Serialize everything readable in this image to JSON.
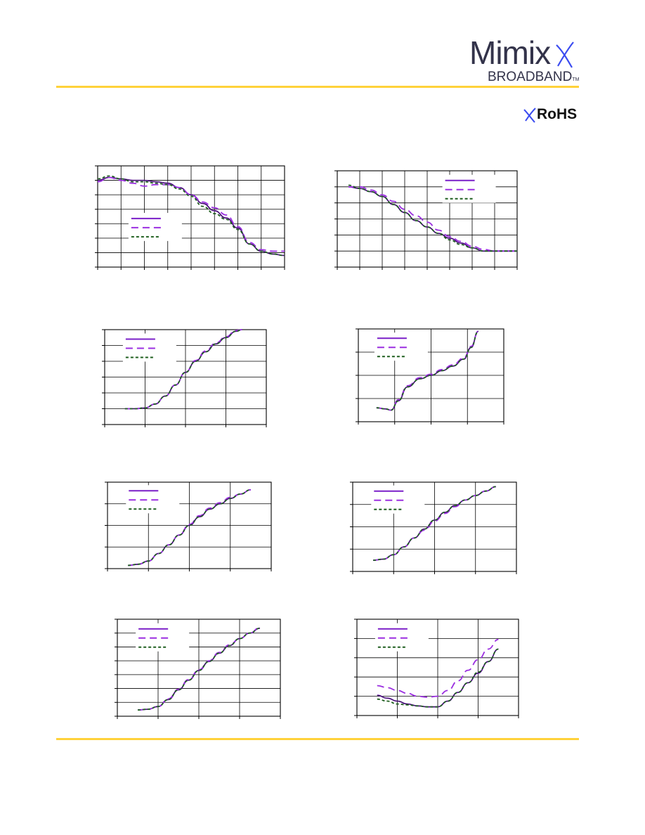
{
  "header": {
    "logo_word": "Mimix",
    "logo_sub": "BROADBAND",
    "logo_tm": "TM",
    "rohs_label": "RoHS"
  },
  "colors": {
    "rule": "#FFD23A",
    "solid_series": "#7A1FC8",
    "dash_series": "#9B2FE0",
    "dot_series": "#1F5F1F",
    "black_trace": "#111111",
    "grid": "#000000",
    "logo_accent": "#3b4cf0"
  },
  "chart_data": [
    {
      "type": "line",
      "title": "",
      "xlabel": "",
      "ylabel": "",
      "xlim": [
        0,
        8
      ],
      "ylim": [
        0,
        7
      ],
      "grid": true,
      "legend": "center-left",
      "series": [
        {
          "style": "solid",
          "x": [
            0,
            0.5,
            1,
            1.5,
            2,
            2.5,
            3,
            3.5,
            4,
            4.5,
            5,
            5.5,
            6,
            6.5,
            7,
            7.5,
            8
          ],
          "values": [
            6.0,
            6.2,
            6.1,
            6.0,
            6.0,
            5.9,
            5.8,
            5.5,
            5.0,
            4.4,
            3.9,
            3.4,
            2.7,
            1.6,
            1.1,
            0.9,
            0.8
          ]
        },
        {
          "style": "dash",
          "x": [
            0,
            0.5,
            1,
            1.5,
            2,
            2.5,
            3,
            3.5,
            4,
            4.5,
            5,
            5.5,
            6,
            6.5,
            7,
            7.5,
            8
          ],
          "values": [
            5.9,
            6.2,
            6.0,
            5.8,
            5.6,
            5.7,
            5.7,
            5.5,
            5.0,
            4.5,
            4.1,
            3.6,
            2.8,
            1.7,
            1.2,
            1.1,
            1.1
          ]
        },
        {
          "style": "dot",
          "x": [
            0,
            0.5,
            1,
            1.5,
            2,
            2.5,
            3,
            3.5,
            4,
            4.5,
            5,
            5.5,
            6,
            6.5,
            7,
            7.5,
            8
          ],
          "values": [
            6.1,
            6.3,
            6.1,
            5.9,
            5.9,
            5.8,
            5.7,
            5.4,
            4.9,
            4.2,
            3.7,
            3.3,
            2.6,
            1.6,
            1.1,
            0.9,
            0.8
          ]
        }
      ]
    },
    {
      "type": "line",
      "title": "",
      "xlabel": "",
      "ylabel": "",
      "xlim": [
        0,
        8
      ],
      "ylim": [
        0,
        6
      ],
      "grid": true,
      "legend": "top-right",
      "series": [
        {
          "style": "solid",
          "x": [
            0.5,
            1,
            1.5,
            2,
            2.5,
            3,
            3.5,
            4,
            4.5,
            5,
            5.5,
            6,
            6.5,
            7,
            7.5,
            8
          ],
          "values": [
            5.0,
            4.9,
            4.7,
            4.4,
            3.9,
            3.4,
            2.9,
            2.5,
            2.1,
            1.8,
            1.5,
            1.2,
            1.0,
            1.0,
            1.0,
            1.0
          ]
        },
        {
          "style": "dash",
          "x": [
            0.5,
            1,
            1.5,
            2,
            2.5,
            3,
            3.5,
            4,
            4.5,
            5,
            5.5,
            6,
            6.5,
            7,
            7.5,
            8
          ],
          "values": [
            5.0,
            5.0,
            4.8,
            4.5,
            4.1,
            3.6,
            3.2,
            2.8,
            2.3,
            1.9,
            1.6,
            1.3,
            1.1,
            1.0,
            1.0,
            1.0
          ]
        },
        {
          "style": "dot",
          "x": [
            0.5,
            1,
            1.5,
            2,
            2.5,
            3,
            3.5,
            4,
            4.5,
            5,
            5.5,
            6,
            6.5,
            7,
            7.5,
            8
          ],
          "values": [
            5.1,
            4.9,
            4.7,
            4.4,
            3.9,
            3.4,
            2.9,
            2.5,
            2.1,
            1.7,
            1.4,
            1.2,
            1.0,
            1.0,
            1.0,
            1.0
          ]
        }
      ]
    },
    {
      "type": "line",
      "title": "",
      "xlabel": "",
      "ylabel": "",
      "xlim": [
        0,
        4
      ],
      "ylim": [
        0,
        6
      ],
      "grid": true,
      "legend": "top-left",
      "series": [
        {
          "style": "solid",
          "x": [
            0.5,
            0.75,
            1,
            1.25,
            1.5,
            1.75,
            2,
            2.25,
            2.5,
            2.75,
            3,
            3.25,
            3.4
          ],
          "values": [
            1.0,
            1.0,
            1.05,
            1.3,
            1.8,
            2.5,
            3.3,
            4.0,
            4.6,
            5.1,
            5.5,
            5.9,
            6.0
          ]
        },
        {
          "style": "dash",
          "x": [
            0.5,
            0.75,
            1,
            1.25,
            1.5,
            1.75,
            2,
            2.25,
            2.5,
            2.75,
            3,
            3.25,
            3.4
          ],
          "values": [
            1.0,
            1.0,
            1.05,
            1.3,
            1.8,
            2.5,
            3.3,
            4.05,
            4.65,
            5.15,
            5.55,
            5.95,
            6.0
          ]
        },
        {
          "style": "dot",
          "x": [
            0.5,
            0.75,
            1,
            1.25,
            1.5,
            1.75,
            2,
            2.25,
            2.5,
            2.75,
            3,
            3.25,
            3.4
          ],
          "values": [
            1.0,
            1.0,
            1.05,
            1.3,
            1.8,
            2.5,
            3.3,
            4.0,
            4.6,
            5.1,
            5.5,
            5.9,
            6.0
          ]
        }
      ]
    },
    {
      "type": "line",
      "title": "",
      "xlabel": "",
      "ylabel": "",
      "xlim": [
        0,
        4
      ],
      "ylim": [
        0,
        4
      ],
      "grid": true,
      "legend": "top-left",
      "series": [
        {
          "style": "solid",
          "x": [
            0.5,
            0.75,
            0.9,
            1.1,
            1.35,
            1.7,
            2,
            2.3,
            2.6,
            2.9,
            3.1,
            3.3
          ],
          "values": [
            0.6,
            0.55,
            0.5,
            0.9,
            1.5,
            1.85,
            2.0,
            2.2,
            2.4,
            2.7,
            3.2,
            3.9
          ]
        },
        {
          "style": "dash",
          "x": [
            0.5,
            0.75,
            0.9,
            1.1,
            1.35,
            1.7,
            2,
            2.3,
            2.6,
            2.9,
            3.1,
            3.3
          ],
          "values": [
            0.6,
            0.55,
            0.5,
            0.95,
            1.55,
            1.9,
            2.05,
            2.25,
            2.45,
            2.75,
            3.25,
            3.9
          ]
        },
        {
          "style": "dot",
          "x": [
            0.5,
            0.75,
            0.9,
            1.1,
            1.35,
            1.7,
            2,
            2.3,
            2.6,
            2.9,
            3.1,
            3.3
          ],
          "values": [
            0.6,
            0.55,
            0.5,
            0.9,
            1.5,
            1.85,
            2.0,
            2.2,
            2.4,
            2.7,
            3.2,
            3.9
          ]
        }
      ]
    },
    {
      "type": "line",
      "title": "",
      "xlabel": "",
      "ylabel": "",
      "xlim": [
        0,
        4
      ],
      "ylim": [
        0,
        4
      ],
      "grid": true,
      "legend": "top-left",
      "series": [
        {
          "style": "solid",
          "x": [
            0.5,
            0.75,
            1,
            1.25,
            1.5,
            1.75,
            2,
            2.25,
            2.5,
            2.75,
            3,
            3.25,
            3.5
          ],
          "values": [
            0.15,
            0.2,
            0.35,
            0.7,
            1.1,
            1.55,
            2.0,
            2.4,
            2.75,
            3.0,
            3.25,
            3.45,
            3.65
          ]
        },
        {
          "style": "dash",
          "x": [
            0.5,
            0.75,
            1,
            1.25,
            1.5,
            1.75,
            2,
            2.25,
            2.5,
            2.75,
            3,
            3.25,
            3.5
          ],
          "values": [
            0.15,
            0.2,
            0.35,
            0.7,
            1.1,
            1.55,
            2.05,
            2.45,
            2.8,
            3.05,
            3.3,
            3.45,
            3.65
          ]
        },
        {
          "style": "dot",
          "x": [
            0.5,
            0.75,
            1,
            1.25,
            1.5,
            1.75,
            2,
            2.25,
            2.5,
            2.75,
            3,
            3.25,
            3.5
          ],
          "values": [
            0.15,
            0.2,
            0.35,
            0.7,
            1.1,
            1.55,
            2.0,
            2.4,
            2.75,
            3.0,
            3.25,
            3.45,
            3.65
          ]
        }
      ]
    },
    {
      "type": "line",
      "title": "",
      "xlabel": "",
      "ylabel": "",
      "xlim": [
        0,
        4
      ],
      "ylim": [
        0,
        4
      ],
      "grid": true,
      "legend": "top-left",
      "series": [
        {
          "style": "solid",
          "x": [
            0.5,
            0.75,
            1,
            1.25,
            1.5,
            1.75,
            2,
            2.25,
            2.5,
            2.75,
            3,
            3.25,
            3.5
          ],
          "values": [
            0.5,
            0.55,
            0.75,
            1.1,
            1.5,
            1.9,
            2.3,
            2.65,
            2.95,
            3.2,
            3.4,
            3.6,
            3.8
          ]
        },
        {
          "style": "dash",
          "x": [
            0.5,
            0.75,
            1,
            1.25,
            1.5,
            1.75,
            2,
            2.25,
            2.5,
            2.75,
            3,
            3.25,
            3.5
          ],
          "values": [
            0.5,
            0.55,
            0.75,
            1.1,
            1.5,
            1.85,
            2.25,
            2.6,
            2.9,
            3.2,
            3.4,
            3.6,
            3.8
          ]
        },
        {
          "style": "dot",
          "x": [
            0.5,
            0.75,
            1,
            1.25,
            1.5,
            1.75,
            2,
            2.25,
            2.5,
            2.75,
            3,
            3.25,
            3.5
          ],
          "values": [
            0.5,
            0.55,
            0.75,
            1.1,
            1.5,
            1.9,
            2.3,
            2.65,
            2.95,
            3.2,
            3.4,
            3.6,
            3.8
          ]
        }
      ]
    },
    {
      "type": "line",
      "title": "",
      "xlabel": "",
      "ylabel": "",
      "xlim": [
        0,
        4
      ],
      "ylim": [
        0,
        7
      ],
      "grid": true,
      "legend": "top-left",
      "series": [
        {
          "style": "solid",
          "x": [
            0.5,
            0.75,
            1,
            1.25,
            1.5,
            1.75,
            2,
            2.25,
            2.5,
            2.75,
            3,
            3.25,
            3.5
          ],
          "values": [
            0.45,
            0.5,
            0.7,
            1.2,
            1.9,
            2.6,
            3.3,
            3.95,
            4.55,
            5.1,
            5.6,
            6.0,
            6.35
          ]
        },
        {
          "style": "dash",
          "x": [
            0.5,
            0.75,
            1,
            1.25,
            1.5,
            1.75,
            2,
            2.25,
            2.5,
            2.75,
            3,
            3.25,
            3.5
          ],
          "values": [
            0.45,
            0.5,
            0.7,
            1.25,
            1.95,
            2.65,
            3.35,
            4.0,
            4.6,
            5.15,
            5.6,
            6.0,
            6.4
          ]
        },
        {
          "style": "dot",
          "x": [
            0.5,
            0.75,
            1,
            1.25,
            1.5,
            1.75,
            2,
            2.25,
            2.5,
            2.75,
            3,
            3.25,
            3.5
          ],
          "values": [
            0.45,
            0.5,
            0.7,
            1.2,
            1.9,
            2.6,
            3.3,
            3.95,
            4.55,
            5.1,
            5.6,
            6.0,
            6.35
          ]
        }
      ]
    },
    {
      "type": "line",
      "title": "",
      "xlabel": "",
      "ylabel": "",
      "xlim": [
        0,
        4
      ],
      "ylim": [
        0,
        5
      ],
      "grid": true,
      "legend": "top-left",
      "series": [
        {
          "style": "solid",
          "x": [
            0.5,
            0.75,
            1,
            1.25,
            1.5,
            1.75,
            2,
            2.25,
            2.5,
            2.75,
            3,
            3.25,
            3.5
          ],
          "values": [
            1.05,
            0.9,
            0.75,
            0.6,
            0.5,
            0.45,
            0.45,
            0.75,
            1.2,
            1.7,
            2.2,
            2.8,
            3.45
          ]
        },
        {
          "style": "dash",
          "x": [
            0.5,
            0.75,
            1,
            1.25,
            1.5,
            1.75,
            2,
            2.25,
            2.5,
            2.75,
            3,
            3.25,
            3.5
          ],
          "values": [
            1.55,
            1.45,
            1.3,
            1.15,
            1.0,
            0.95,
            1.0,
            1.3,
            1.8,
            2.35,
            2.9,
            3.45,
            3.95
          ]
        },
        {
          "style": "dot",
          "x": [
            0.5,
            0.75,
            1,
            1.25,
            1.5,
            1.75,
            2,
            2.25,
            2.5,
            2.75,
            3,
            3.25,
            3.5
          ],
          "values": [
            0.85,
            0.75,
            0.6,
            0.55,
            0.5,
            0.45,
            0.45,
            0.75,
            1.2,
            1.7,
            2.25,
            2.8,
            3.45
          ]
        }
      ]
    }
  ]
}
